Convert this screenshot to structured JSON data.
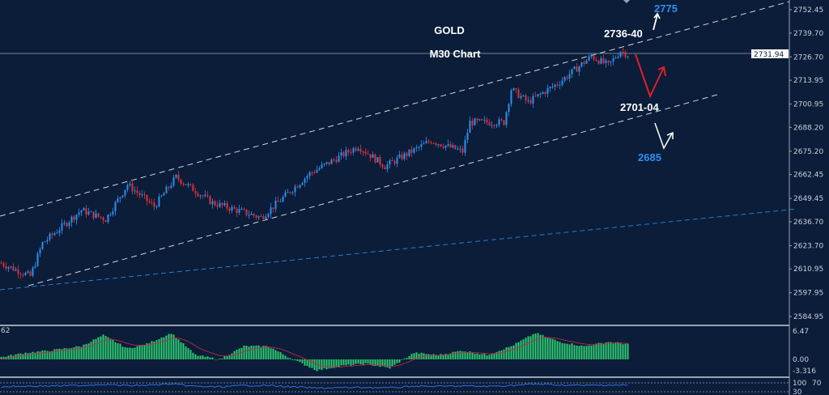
{
  "chart_data": {
    "type": "candlestick",
    "title": "GOLD",
    "subtitle": "M30 Chart",
    "instrument": "GOLD",
    "timeframe": "M30",
    "current_price": "2731.94",
    "price_axis": {
      "ticks": [
        "2752.45",
        "2739.70",
        "2726.70",
        "2713.95",
        "2700.95",
        "2688.20",
        "2675.20",
        "2662.45",
        "2649.45",
        "2636.70",
        "2623.70",
        "2610.95",
        "2597.95",
        "2584.95"
      ],
      "range": [
        2580,
        2760
      ]
    },
    "price_path": {
      "bar": [
        0,
        12,
        17,
        33,
        43,
        52,
        63,
        72,
        87,
        107,
        127,
        147,
        158,
        177,
        190,
        193,
        207,
        210,
        217,
        230,
        243,
        250,
        255,
        258
      ],
      "close": [
        2614,
        2607,
        2625,
        2643,
        2638,
        2657,
        2645,
        2661,
        2647,
        2639,
        2663,
        2678,
        2667,
        2681,
        2675,
        2691,
        2691,
        2709,
        2702,
        2713,
        2727,
        2722,
        2730,
        2728
      ]
    },
    "channel_lines": [
      {
        "style": "dashed",
        "color": "#d0d6e0"
      },
      {
        "style": "dashed",
        "color": "#d0d6e0"
      },
      {
        "style": "dashed",
        "color": "#2a7ad8"
      }
    ],
    "annotations": [
      {
        "text": "2775",
        "color": "#2e8ff0"
      },
      {
        "text": "2736-40",
        "color": "#ffffff"
      },
      {
        "text": "2701-04",
        "color": "#ffffff"
      },
      {
        "text": "2685",
        "color": "#2e8ff0"
      }
    ],
    "macd": {
      "label": "62",
      "axis_ticks": [
        "6.47",
        "0.00",
        "-3.316"
      ],
      "range": [
        -3.316,
        6.47
      ],
      "histogram_path": {
        "bar": [
          0,
          10,
          20,
          33,
          42,
          52,
          60,
          70,
          80,
          90,
          100,
          110,
          120,
          130,
          140,
          150,
          160,
          170,
          180,
          190,
          200,
          210,
          220,
          230,
          240,
          250,
          258
        ],
        "value": [
          0.5,
          1.5,
          2,
          3,
          5.5,
          2.5,
          3.5,
          6,
          1,
          0,
          3,
          3,
          0,
          -2.5,
          -1.5,
          -1,
          -2,
          1.5,
          1,
          2,
          1,
          3,
          6,
          4,
          3,
          4,
          3.5
        ]
      },
      "colors": {
        "histogram": "#2ecc71",
        "signal": "#c0284a"
      }
    },
    "rsi": {
      "axis_ticks": [
        "100",
        "70",
        "30"
      ],
      "color": "#2f6fe0"
    },
    "colors": {
      "background": "#0b1d38",
      "bull": "#2e8ff0",
      "bear": "#e0303a",
      "arrow_red": "#e0202a",
      "arrow_white": "#ffffff"
    }
  }
}
